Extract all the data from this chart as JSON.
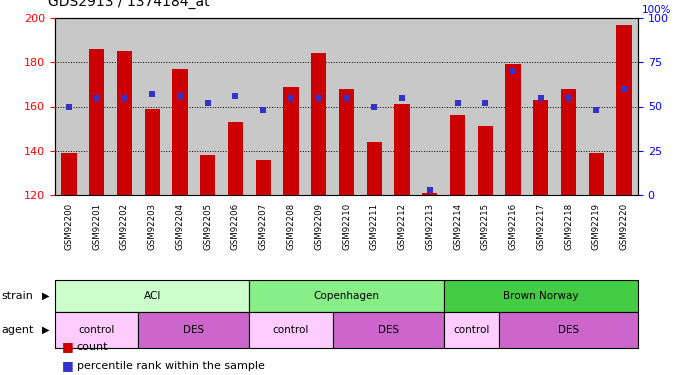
{
  "title": "GDS2913 / 1374184_at",
  "samples": [
    "GSM92200",
    "GSM92201",
    "GSM92202",
    "GSM92203",
    "GSM92204",
    "GSM92205",
    "GSM92206",
    "GSM92207",
    "GSM92208",
    "GSM92209",
    "GSM92210",
    "GSM92211",
    "GSM92212",
    "GSM92213",
    "GSM92214",
    "GSM92215",
    "GSM92216",
    "GSM92217",
    "GSM92218",
    "GSM92219",
    "GSM92220"
  ],
  "counts": [
    139,
    186,
    185,
    159,
    177,
    138,
    153,
    136,
    169,
    184,
    168,
    144,
    161,
    121,
    156,
    151,
    179,
    163,
    168,
    139,
    197
  ],
  "percentiles": [
    50,
    55,
    55,
    57,
    56,
    52,
    56,
    48,
    55,
    55,
    55,
    50,
    55,
    3,
    52,
    52,
    70,
    55,
    55,
    48,
    60
  ],
  "ylim_left": [
    120,
    200
  ],
  "ylim_right": [
    0,
    100
  ],
  "yticks_left": [
    120,
    140,
    160,
    180,
    200
  ],
  "yticks_right": [
    0,
    25,
    50,
    75,
    100
  ],
  "bar_color": "#cc0000",
  "dot_color": "#3333cc",
  "strain_groups": [
    {
      "label": "ACI",
      "start": 0,
      "end": 6,
      "color": "#ccffcc"
    },
    {
      "label": "Copenhagen",
      "start": 7,
      "end": 13,
      "color": "#88ee88"
    },
    {
      "label": "Brown Norway",
      "start": 14,
      "end": 20,
      "color": "#44cc44"
    }
  ],
  "agent_groups": [
    {
      "label": "control",
      "start": 0,
      "end": 2,
      "color": "#ffccff"
    },
    {
      "label": "DES",
      "start": 3,
      "end": 6,
      "color": "#cc66cc"
    },
    {
      "label": "control",
      "start": 7,
      "end": 9,
      "color": "#ffccff"
    },
    {
      "label": "DES",
      "start": 10,
      "end": 13,
      "color": "#cc66cc"
    },
    {
      "label": "control",
      "start": 14,
      "end": 15,
      "color": "#ffccff"
    },
    {
      "label": "DES",
      "start": 16,
      "end": 20,
      "color": "#cc66cc"
    }
  ],
  "strain_label": "strain",
  "agent_label": "agent",
  "legend_count_label": "count",
  "legend_percentile_label": "percentile rank within the sample",
  "xtick_bg_color": "#c8c8c8",
  "grid_color": "#000000",
  "right_label_100pct": "100%"
}
